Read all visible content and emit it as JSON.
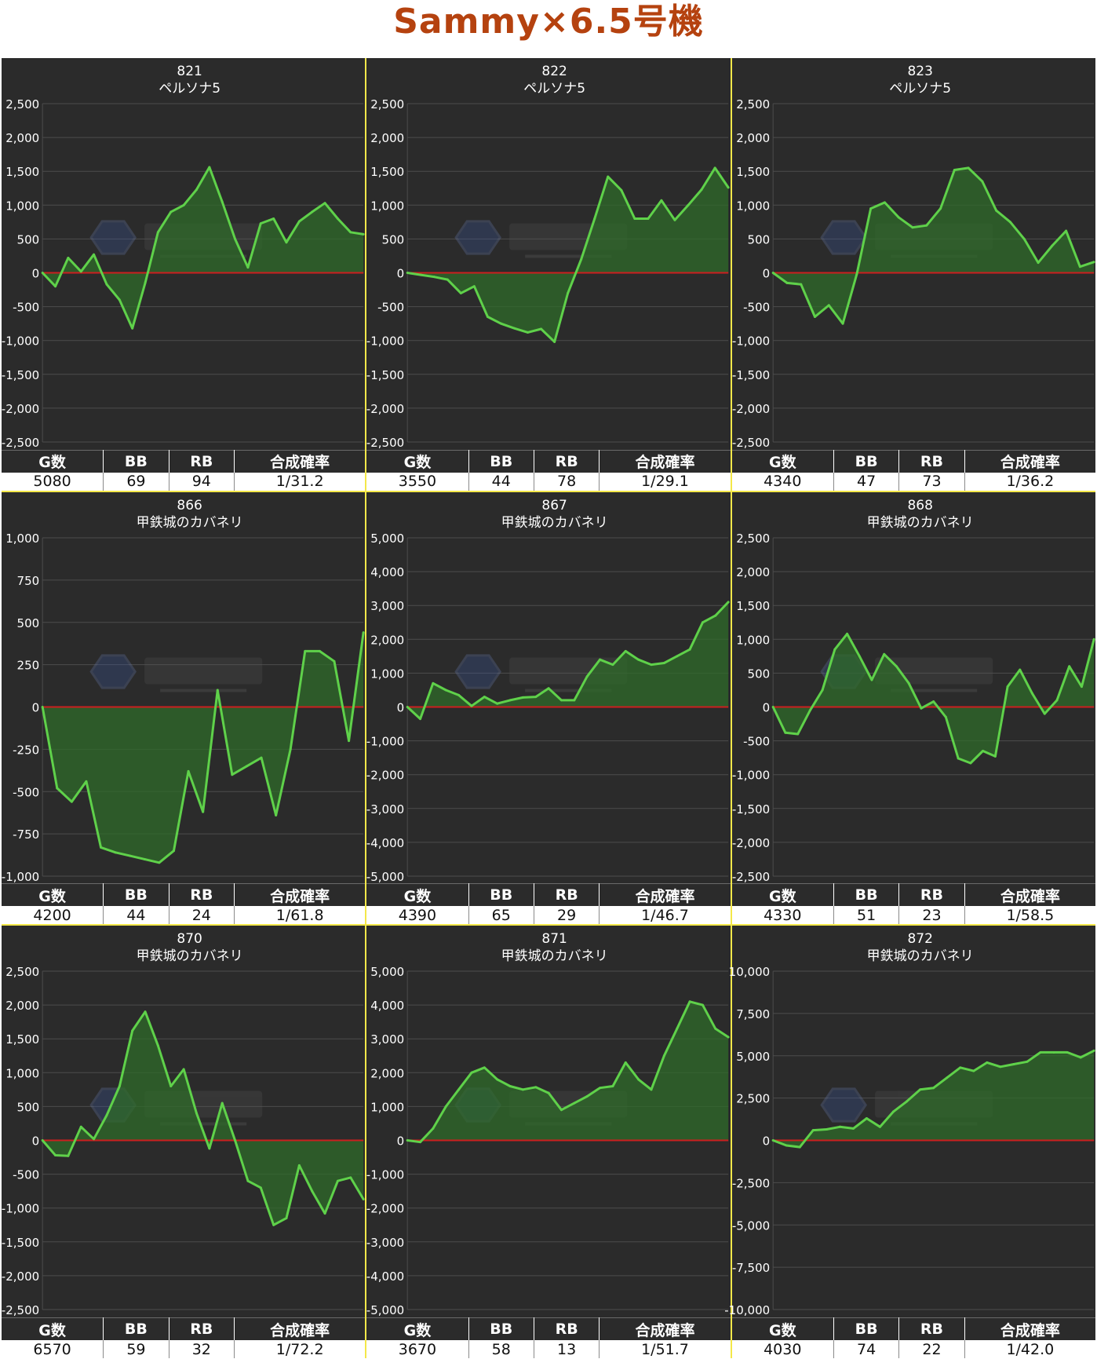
{
  "page_title": "Sammy×6.5号機",
  "stats_headers": [
    "G数",
    "BB",
    "RB",
    "合成確率"
  ],
  "chart_data": [
    {
      "type": "line",
      "title": "821",
      "subtitle": "ペルソナ5",
      "ylim": [
        -2500,
        2500
      ],
      "yticks": [
        2500,
        2000,
        1500,
        1000,
        500,
        0,
        -500,
        -1000,
        -1500,
        -2000,
        -2500
      ],
      "tick_labels": [
        "2,500",
        "2,000",
        "1,500",
        "1,000",
        "500",
        "0",
        "-500",
        "-1,000",
        "-1,500",
        "-2,000",
        "-2,500"
      ],
      "values": [
        0,
        -200,
        220,
        20,
        270,
        -170,
        -400,
        -820,
        -150,
        600,
        900,
        1000,
        1230,
        1560,
        1050,
        500,
        80,
        730,
        800,
        450,
        760,
        900,
        1030,
        800,
        600,
        570
      ],
      "stats": {
        "games": "5080",
        "bb": "69",
        "rb": "94",
        "rate": "1/31.2"
      }
    },
    {
      "type": "line",
      "title": "822",
      "subtitle": "ペルソナ5",
      "ylim": [
        -2500,
        2500
      ],
      "yticks": [
        2500,
        2000,
        1500,
        1000,
        500,
        0,
        -500,
        -1000,
        -1500,
        -2000,
        -2500
      ],
      "tick_labels": [
        "2,500",
        "2,000",
        "1,500",
        "1,000",
        "500",
        "0",
        "-500",
        "-1,000",
        "-1,500",
        "-2,000",
        "-2,500"
      ],
      "values": [
        0,
        -30,
        -60,
        -100,
        -300,
        -200,
        -650,
        -750,
        -820,
        -880,
        -830,
        -1020,
        -300,
        200,
        800,
        1420,
        1220,
        800,
        800,
        1070,
        780,
        1000,
        1230,
        1550,
        1260
      ],
      "stats": {
        "games": "3550",
        "bb": "44",
        "rb": "78",
        "rate": "1/29.1"
      }
    },
    {
      "type": "line",
      "title": "823",
      "subtitle": "ペルソナ5",
      "ylim": [
        -2500,
        2500
      ],
      "yticks": [
        2500,
        2000,
        1500,
        1000,
        500,
        0,
        -500,
        -1000,
        -1500,
        -2000,
        -2500
      ],
      "tick_labels": [
        "2,500",
        "2,000",
        "1,500",
        "1,000",
        "500",
        "0",
        "-500",
        "-1,000",
        "-1,500",
        "-2,000",
        "-2,500"
      ],
      "values": [
        0,
        -150,
        -170,
        -650,
        -480,
        -750,
        -20,
        950,
        1040,
        820,
        670,
        700,
        950,
        1520,
        1550,
        1350,
        920,
        750,
        500,
        150,
        400,
        620,
        90,
        160
      ],
      "stats": {
        "games": "4340",
        "bb": "47",
        "rb": "73",
        "rate": "1/36.2"
      }
    },
    {
      "type": "line",
      "title": "866",
      "subtitle": "甲鉄城のカバネリ",
      "ylim": [
        -1000,
        1000
      ],
      "yticks": [
        1000,
        750,
        500,
        250,
        0,
        -250,
        -500,
        -750,
        -1000
      ],
      "tick_labels": [
        "1,000",
        "750",
        "500",
        "250",
        "0",
        "-250",
        "-500",
        "-750",
        "-1,000"
      ],
      "values": [
        0,
        -480,
        -560,
        -440,
        -830,
        -860,
        -880,
        -900,
        -920,
        -850,
        -380,
        -620,
        100,
        -400,
        -350,
        -300,
        -640,
        -250,
        330,
        330,
        270,
        -200,
        440
      ],
      "stats": {
        "games": "4200",
        "bb": "44",
        "rb": "24",
        "rate": "1/61.8"
      }
    },
    {
      "type": "line",
      "title": "867",
      "subtitle": "甲鉄城のカバネリ",
      "ylim": [
        -5000,
        5000
      ],
      "yticks": [
        5000,
        4000,
        3000,
        2000,
        1000,
        0,
        -1000,
        -2000,
        -3000,
        -4000,
        -5000
      ],
      "tick_labels": [
        "5,000",
        "4,000",
        "3,000",
        "2,000",
        "1,000",
        "0",
        "-1,000",
        "-2,000",
        "-3,000",
        "-4,000",
        "-5,000"
      ],
      "values": [
        0,
        -350,
        700,
        500,
        350,
        30,
        300,
        100,
        200,
        280,
        300,
        550,
        200,
        200,
        900,
        1400,
        1250,
        1650,
        1400,
        1250,
        1300,
        1500,
        1700,
        2500,
        2700,
        3100
      ],
      "stats": {
        "games": "4390",
        "bb": "65",
        "rb": "29",
        "rate": "1/46.7"
      }
    },
    {
      "type": "line",
      "title": "868",
      "subtitle": "甲鉄城のカバネリ",
      "ylim": [
        -2500,
        2500
      ],
      "yticks": [
        2500,
        2000,
        1500,
        1000,
        500,
        0,
        -500,
        -1000,
        -1500,
        -2000,
        -2500
      ],
      "tick_labels": [
        "2,500",
        "2,000",
        "1,500",
        "1,000",
        "500",
        "0",
        "-500",
        "-1,000",
        "-1,500",
        "-2,000",
        "-2,500"
      ],
      "values": [
        0,
        -380,
        -400,
        -50,
        250,
        850,
        1080,
        750,
        400,
        780,
        600,
        350,
        -20,
        80,
        -150,
        -760,
        -830,
        -650,
        -730,
        300,
        550,
        200,
        -100,
        100,
        600,
        300,
        1000
      ],
      "stats": {
        "games": "4330",
        "bb": "51",
        "rb": "23",
        "rate": "1/58.5"
      }
    },
    {
      "type": "line",
      "title": "870",
      "subtitle": "甲鉄城のカバネリ",
      "ylim": [
        -2500,
        2500
      ],
      "yticks": [
        2500,
        2000,
        1500,
        1000,
        500,
        0,
        -500,
        -1000,
        -1500,
        -2000,
        -2500
      ],
      "tick_labels": [
        "2,500",
        "2,000",
        "1,500",
        "1,000",
        "500",
        "0",
        "-500",
        "-1,000",
        "-1,500",
        "-2,000",
        "-2,500"
      ],
      "values": [
        0,
        -220,
        -230,
        200,
        20,
        370,
        800,
        1620,
        1900,
        1400,
        800,
        1050,
        400,
        -120,
        550,
        0,
        -600,
        -700,
        -1250,
        -1150,
        -370,
        -750,
        -1080,
        -600,
        -550,
        -870
      ],
      "stats": {
        "games": "6570",
        "bb": "59",
        "rb": "32",
        "rate": "1/72.2"
      }
    },
    {
      "type": "line",
      "title": "871",
      "subtitle": "甲鉄城のカバネリ",
      "ylim": [
        -5000,
        5000
      ],
      "yticks": [
        5000,
        4000,
        3000,
        2000,
        1000,
        0,
        -1000,
        -2000,
        -3000,
        -4000,
        -5000
      ],
      "tick_labels": [
        "5,000",
        "4,000",
        "3,000",
        "2,000",
        "1,000",
        "0",
        "-1,000",
        "-2,000",
        "-3,000",
        "-4,000",
        "-5,000"
      ],
      "values": [
        0,
        -50,
        350,
        1000,
        1500,
        2000,
        2150,
        1800,
        1600,
        1500,
        1570,
        1400,
        900,
        1100,
        1300,
        1550,
        1600,
        2300,
        1800,
        1500,
        2500,
        3300,
        4100,
        4000,
        3300,
        3050
      ],
      "stats": {
        "games": "3670",
        "bb": "58",
        "rb": "13",
        "rate": "1/51.7"
      }
    },
    {
      "type": "line",
      "title": "872",
      "subtitle": "甲鉄城のカバネリ",
      "ylim": [
        -10000,
        10000
      ],
      "yticks": [
        10000,
        7500,
        5000,
        2500,
        0,
        -2500,
        -5000,
        -7500,
        -10000
      ],
      "tick_labels": [
        "10,000",
        "7,500",
        "5,000",
        "2,500",
        "0",
        "-2,500",
        "-5,000",
        "-7,500",
        "-10,000"
      ],
      "values": [
        0,
        -300,
        -400,
        600,
        650,
        800,
        700,
        1300,
        800,
        1700,
        2300,
        3000,
        3100,
        3700,
        4300,
        4100,
        4600,
        4350,
        4500,
        4650,
        5200,
        5200,
        5200,
        4900,
        5300
      ],
      "stats": {
        "games": "4030",
        "bb": "74",
        "rb": "22",
        "rate": "1/42.0"
      }
    }
  ]
}
